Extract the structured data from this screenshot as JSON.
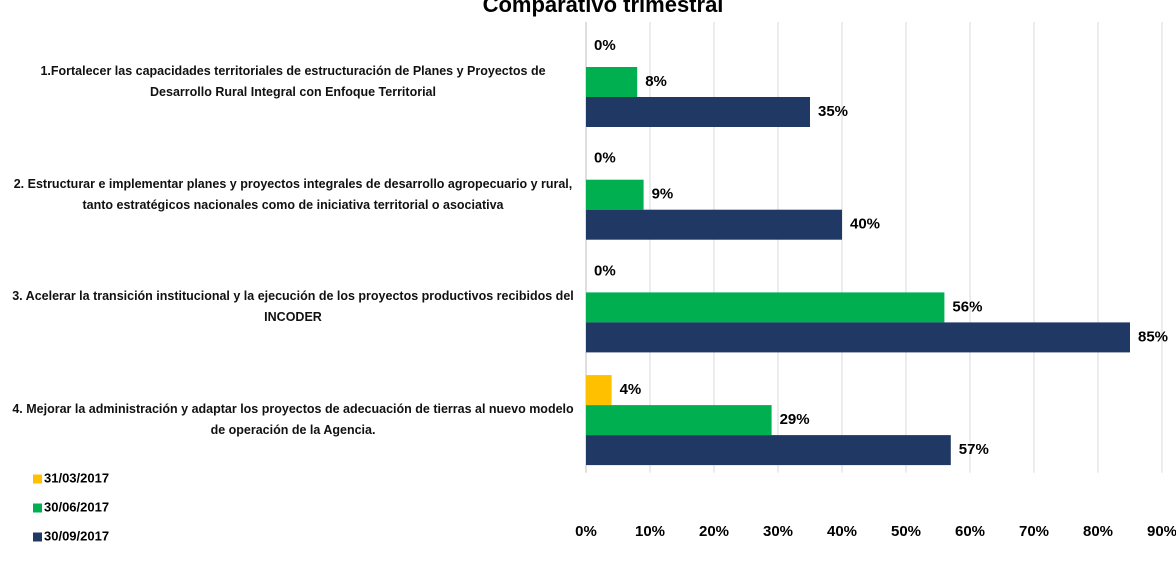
{
  "chart_data": {
    "type": "bar",
    "orientation": "horizontal",
    "title": "Comparativo trimestral",
    "categories": [
      "1.Fortalecer las capacidades territoriales de estructuración de Planes y Proyectos de Desarrollo Rural Integral con Enfoque Territorial",
      "2. Estructurar e implementar planes y proyectos integrales de desarrollo agropecuario y rural, tanto estratégicos nacionales como de iniciativa territorial o asociativa",
      "3. Acelerar la transición institucional y la ejecución de los proyectos productivos recibidos del INCODER",
      "4. Mejorar la administración y adaptar los proyectos de adecuación de tierras al nuevo modelo de operación de la Agencia."
    ],
    "series": [
      {
        "name": "31/03/2017",
        "color": "#ffc000",
        "values": [
          0,
          0,
          0,
          4
        ],
        "value_labels": [
          "0%",
          "0%",
          "0%",
          "4%"
        ]
      },
      {
        "name": "30/06/2017",
        "color": "#00b050",
        "values": [
          8,
          9,
          56,
          29
        ],
        "value_labels": [
          "8%",
          "9%",
          "56%",
          "29%"
        ]
      },
      {
        "name": "30/09/2017",
        "color": "#203864",
        "values": [
          35,
          40,
          85,
          57
        ],
        "value_labels": [
          "35%",
          "40%",
          "85%",
          "57%"
        ]
      }
    ],
    "xlim": [
      0,
      90
    ],
    "xticks": [
      {
        "value": 0,
        "label": "0%"
      },
      {
        "value": 10,
        "label": "10%"
      },
      {
        "value": 20,
        "label": "20%"
      },
      {
        "value": 30,
        "label": "30%"
      },
      {
        "value": 40,
        "label": "40%"
      },
      {
        "value": 50,
        "label": "50%"
      },
      {
        "value": 60,
        "label": "60%"
      },
      {
        "value": 70,
        "label": "70%"
      },
      {
        "value": 80,
        "label": "80%"
      },
      {
        "value": 90,
        "label": "90%"
      }
    ],
    "grid": true,
    "legend": "bottom-left"
  }
}
